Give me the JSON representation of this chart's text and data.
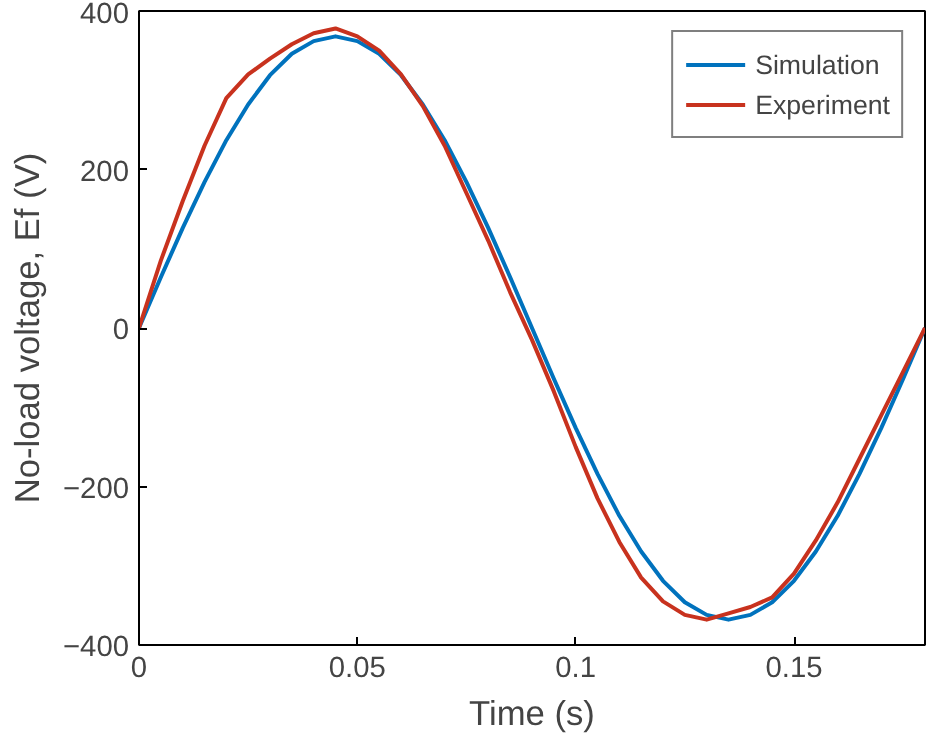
{
  "chart_data": {
    "type": "line",
    "xlabel": "Time (s)",
    "ylabel": "No-load voltage, Ef (V)",
    "xlim": [
      0,
      0.18
    ],
    "ylim": [
      -400,
      400
    ],
    "xticks": [
      0,
      0.05,
      0.1,
      0.15
    ],
    "yticks": [
      -400,
      -200,
      0,
      200,
      400
    ],
    "grid": false,
    "legend": "top right",
    "x": [
      0,
      0.005,
      0.01,
      0.015,
      0.02,
      0.025,
      0.03,
      0.035,
      0.04,
      0.045,
      0.05,
      0.055,
      0.06,
      0.065,
      0.07,
      0.075,
      0.08,
      0.085,
      0.09,
      0.095,
      0.1,
      0.105,
      0.11,
      0.115,
      0.12,
      0.125,
      0.13,
      0.135,
      0.14,
      0.145,
      0.15,
      0.155,
      0.16,
      0.165,
      0.17,
      0.175,
      0.18
    ],
    "series": [
      {
        "name": "Simulation",
        "color": "#0072bd",
        "values": [
          0,
          64,
          126,
          184,
          237,
          282,
          319,
          346,
          362,
          368,
          362,
          346,
          319,
          282,
          237,
          184,
          126,
          64,
          0,
          -64,
          -126,
          -184,
          -237,
          -282,
          -319,
          -346,
          -362,
          -368,
          -362,
          -346,
          -319,
          -282,
          -237,
          -184,
          -126,
          -64,
          0
        ]
      },
      {
        "name": "Experiment",
        "color": "#c8321e",
        "values": [
          0,
          85,
          160,
          230,
          290,
          320,
          340,
          358,
          372,
          378,
          368,
          350,
          320,
          280,
          230,
          170,
          110,
          45,
          -15,
          -80,
          -150,
          -215,
          -270,
          -315,
          -345,
          -362,
          -368,
          -360,
          -352,
          -340,
          -310,
          -268,
          -220,
          -165,
          -110,
          -55,
          0
        ]
      }
    ]
  }
}
